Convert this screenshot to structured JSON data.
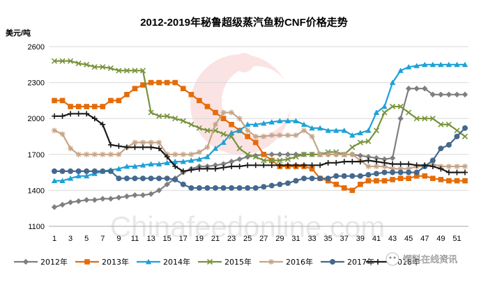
{
  "chart_data": {
    "type": "line",
    "title": "2012-2019年秘鲁超级蒸汽鱼粉CNF价格走势",
    "ylabel": "美元/吨",
    "xlabel": "",
    "ylim": [
      1100,
      2600
    ],
    "yticks": [
      1100,
      1400,
      1700,
      2000,
      2300,
      2600
    ],
    "x": [
      1,
      2,
      3,
      4,
      5,
      6,
      7,
      8,
      9,
      10,
      11,
      12,
      13,
      14,
      15,
      16,
      17,
      18,
      19,
      20,
      21,
      22,
      23,
      24,
      25,
      26,
      27,
      28,
      29,
      30,
      31,
      32,
      33,
      34,
      35,
      36,
      37,
      38,
      39,
      40,
      41,
      42,
      43,
      44,
      45,
      46,
      47,
      48,
      49,
      50,
      51,
      52
    ],
    "xtick_labels": [
      "1",
      "3",
      "5",
      "7",
      "9",
      "11",
      "13",
      "15",
      "17",
      "19",
      "21",
      "23",
      "25",
      "27",
      "29",
      "31",
      "33",
      "35",
      "37",
      "39",
      "41",
      "43",
      "45",
      "47",
      "49",
      "51"
    ],
    "grid": "horizontal",
    "legend_position": "bottom",
    "series": [
      {
        "name": "2012年",
        "color": "#7f7f7f",
        "marker": "diamond",
        "values": [
          1260,
          1280,
          1300,
          1310,
          1320,
          1320,
          1330,
          1330,
          1340,
          1350,
          1360,
          1360,
          1370,
          1400,
          1450,
          1500,
          1550,
          1580,
          1600,
          1600,
          1610,
          1620,
          1640,
          1660,
          1680,
          1690,
          1700,
          1700,
          1700,
          1700,
          1700,
          1700,
          1700,
          1700,
          1700,
          1700,
          1700,
          1700,
          1690,
          1680,
          1670,
          1660,
          1670,
          2000,
          2250,
          2250,
          2250,
          2200,
          2200,
          2200,
          2200,
          2200
        ]
      },
      {
        "name": "2013年",
        "color": "#e46c0a",
        "marker": "square",
        "values": [
          2150,
          2150,
          2100,
          2100,
          2100,
          2100,
          2100,
          2150,
          2150,
          2200,
          2250,
          2280,
          2300,
          2300,
          2300,
          2300,
          2250,
          2200,
          2150,
          2100,
          2050,
          2000,
          1950,
          1900,
          1850,
          1800,
          1700,
          1650,
          1600,
          1600,
          1600,
          1600,
          1580,
          1500,
          1480,
          1450,
          1420,
          1400,
          1450,
          1480,
          1480,
          1480,
          1490,
          1500,
          1500,
          1520,
          1520,
          1500,
          1490,
          1480,
          1480,
          1480
        ]
      },
      {
        "name": "2014年",
        "color": "#1ea1d6",
        "marker": "triangle",
        "values": [
          1480,
          1480,
          1500,
          1520,
          1520,
          1540,
          1560,
          1570,
          1580,
          1600,
          1600,
          1610,
          1620,
          1620,
          1630,
          1640,
          1640,
          1650,
          1660,
          1680,
          1750,
          1800,
          1880,
          1900,
          1950,
          1950,
          1960,
          1970,
          1980,
          1980,
          1980,
          1950,
          1920,
          1920,
          1900,
          1900,
          1900,
          1860,
          1880,
          1900,
          2050,
          2100,
          2300,
          2400,
          2430,
          2440,
          2450,
          2450,
          2450,
          2450,
          2450,
          2450
        ]
      },
      {
        "name": "2015年",
        "color": "#77933c",
        "marker": "x",
        "values": [
          2480,
          2480,
          2480,
          2460,
          2450,
          2430,
          2430,
          2420,
          2400,
          2400,
          2400,
          2400,
          2050,
          2020,
          2020,
          2000,
          1980,
          1950,
          1920,
          1900,
          1900,
          1870,
          1850,
          1750,
          1700,
          1680,
          1650,
          1650,
          1650,
          1660,
          1680,
          1700,
          1700,
          1700,
          1720,
          1720,
          1700,
          1760,
          1800,
          1810,
          1900,
          2050,
          2100,
          2100,
          2050,
          2000,
          2000,
          2000,
          1950,
          1950,
          1900,
          1850
        ]
      },
      {
        "name": "2016年",
        "color": "#c4a487",
        "marker": "star",
        "values": [
          1900,
          1870,
          1750,
          1700,
          1700,
          1700,
          1700,
          1700,
          1700,
          1760,
          1800,
          1800,
          1800,
          1800,
          1700,
          1700,
          1700,
          1700,
          1720,
          1760,
          1950,
          2050,
          2050,
          2000,
          1900,
          1850,
          1850,
          1860,
          1860,
          1860,
          1860,
          1900,
          1850,
          1700,
          1700,
          1700,
          1700,
          1700,
          1650,
          1600,
          1600,
          1600,
          1580,
          1580,
          1580,
          1600,
          1600,
          1620,
          1600,
          1600,
          1600,
          1600
        ]
      },
      {
        "name": "2017年",
        "color": "#44688e",
        "marker": "circle",
        "values": [
          1560,
          1560,
          1560,
          1560,
          1560,
          1560,
          1560,
          1560,
          1500,
          1500,
          1500,
          1500,
          1500,
          1500,
          1500,
          1490,
          1450,
          1420,
          1420,
          1420,
          1420,
          1420,
          1420,
          1420,
          1420,
          1420,
          1430,
          1440,
          1450,
          1460,
          1480,
          1500,
          1500,
          1500,
          1500,
          1520,
          1520,
          1520,
          1520,
          1530,
          1540,
          1550,
          1550,
          1550,
          1550,
          1550,
          1600,
          1650,
          1750,
          1780,
          1850,
          1920
        ]
      },
      {
        "name": "2018年",
        "color": "#1a1a1a",
        "marker": "plus",
        "values": [
          2020,
          2020,
          2040,
          2040,
          2040,
          2000,
          1950,
          1780,
          1770,
          1760,
          1760,
          1760,
          1760,
          1750,
          1680,
          1600,
          1560,
          1570,
          1580,
          1580,
          1580,
          1590,
          1600,
          1600,
          1610,
          1610,
          1610,
          1610,
          1610,
          1610,
          1610,
          1610,
          1610,
          1610,
          1630,
          1630,
          1640,
          1640,
          1640,
          1650,
          1640,
          1630,
          1620,
          1620,
          1620,
          1610,
          1610,
          1600,
          1580,
          1550,
          1550,
          1550
        ]
      }
    ]
  },
  "watermark": {
    "url_text": "Chinafeedonline.com",
    "brand_text": "饲料在线资讯"
  }
}
